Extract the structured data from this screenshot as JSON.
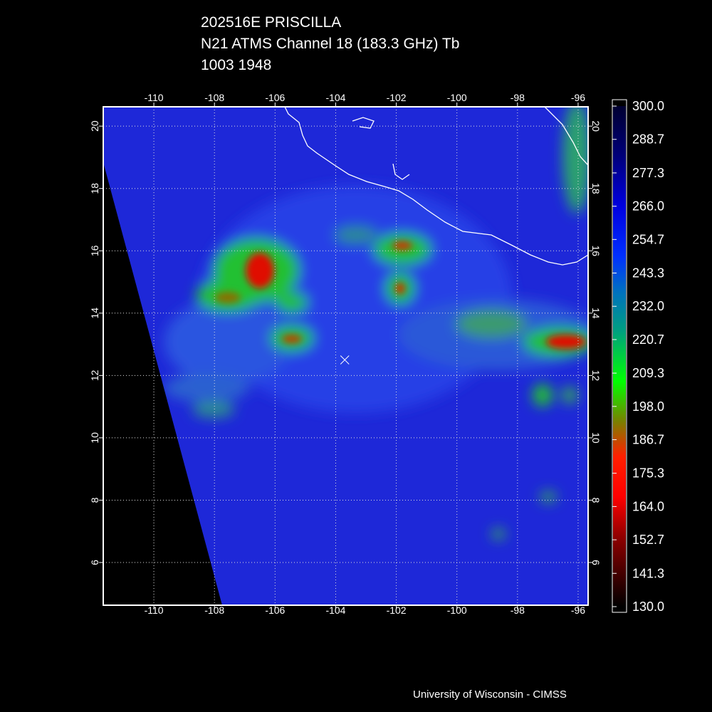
{
  "header": {
    "lines": [
      "202516E PRISCILLA",
      "N21    ATMS Channel 18 (183.3 GHz) Tb",
      "1003 1948"
    ]
  },
  "map": {
    "lon_range": [
      -111.67,
      -95.67
    ],
    "lat_range": [
      4.63,
      20.62
    ],
    "lon_ticks": [
      -110,
      -108,
      -106,
      -104,
      -102,
      -100,
      -98,
      -96
    ],
    "lat_ticks": [
      20,
      18,
      16,
      14,
      12,
      10,
      8,
      6
    ],
    "storm_center": {
      "lon": -103.7,
      "lat": 12.5
    }
  },
  "colorbar": {
    "range": [
      130,
      300
    ],
    "ticks": [
      {
        "value": 300,
        "label": "300.0"
      },
      {
        "value": 288.7,
        "label": "288.7"
      },
      {
        "value": 277.3,
        "label": "277.3"
      },
      {
        "value": 266,
        "label": "266.0"
      },
      {
        "value": 254.7,
        "label": "254.7"
      },
      {
        "value": 243.3,
        "label": "243.3"
      },
      {
        "value": 232,
        "label": "232.0"
      },
      {
        "value": 220.7,
        "label": "220.7"
      },
      {
        "value": 209.3,
        "label": "209.3"
      },
      {
        "value": 198,
        "label": "198.0"
      },
      {
        "value": 186.7,
        "label": "186.7"
      },
      {
        "value": 175.3,
        "label": "175.3"
      },
      {
        "value": 164,
        "label": "164.0"
      },
      {
        "value": 152.7,
        "label": "152.7"
      },
      {
        "value": 141.3,
        "label": "141.3"
      },
      {
        "value": 130,
        "label": "130.0"
      }
    ]
  },
  "footer": {
    "credit": "University of Wisconsin - CIMSS"
  }
}
